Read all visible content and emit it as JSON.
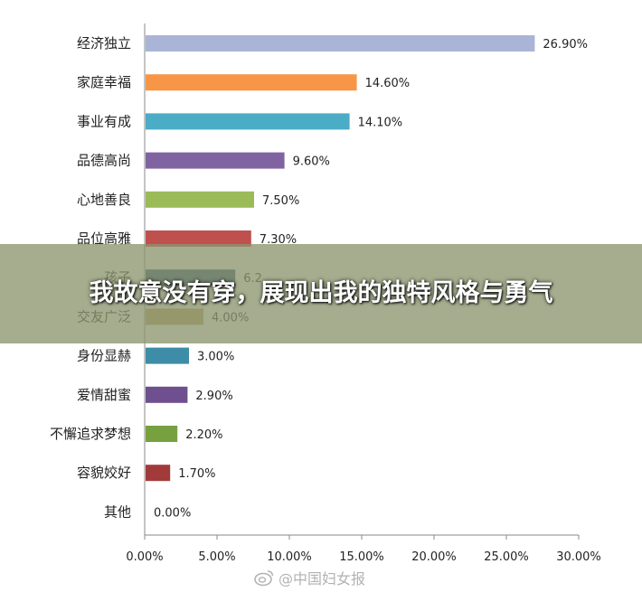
{
  "chart_data": {
    "type": "bar",
    "orientation": "horizontal",
    "categories": [
      "经济独立",
      "家庭幸福",
      "事业有成",
      "品德高尚",
      "心地善良",
      "品位高雅",
      "孩子",
      "交友广泛",
      "身份显赫",
      "爱情甜蜜",
      "不懈追求梦想",
      "容貌姣好",
      "其他"
    ],
    "values": [
      26.9,
      14.6,
      14.1,
      9.6,
      7.5,
      7.3,
      6.2,
      4.0,
      3.0,
      2.9,
      2.2,
      1.7,
      0.0
    ],
    "value_labels": [
      "26.90%",
      "14.60%",
      "14.10%",
      "9.60%",
      "7.50%",
      "7.30%",
      "6.2",
      "4.00%",
      "3.00%",
      "2.90%",
      "2.20%",
      "1.70%",
      "0.00%"
    ],
    "colors": [
      "#a9b4d6",
      "#f79646",
      "#4bacc6",
      "#8064a2",
      "#9bbb59",
      "#c0504d",
      "#2c4d75",
      "#b9a060",
      "#3d8ca8",
      "#6e4f8f",
      "#77a03f",
      "#a33a3a",
      "#6e88b8"
    ],
    "xlim": [
      0,
      30
    ],
    "x_ticks": [
      0,
      5,
      10,
      15,
      20,
      25,
      30
    ],
    "x_tick_labels": [
      "0.00%",
      "5.00%",
      "10.00%",
      "15.00%",
      "20.00%",
      "25.00%",
      "30.00%"
    ],
    "grid": false,
    "legend": "none"
  },
  "banner": {
    "text": "我故意没有穿，展现出我的独特风格与勇气"
  },
  "watermark": {
    "text": "@中国妇女报",
    "icon": "weibo-icon"
  }
}
